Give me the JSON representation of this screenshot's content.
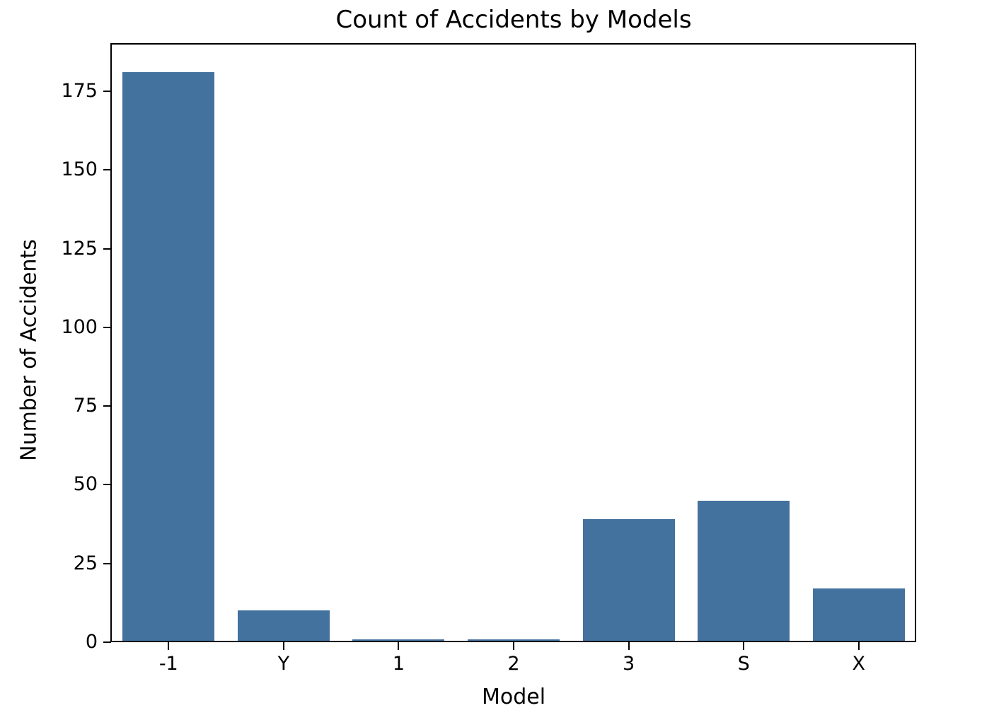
{
  "chart_data": {
    "type": "bar",
    "title": "Count of Accidents by Models",
    "xlabel": "Model",
    "ylabel": "Number of Accidents",
    "categories": [
      "-1",
      "Y",
      "1",
      "2",
      "3",
      "S",
      "X"
    ],
    "values": [
      181,
      10,
      1,
      1,
      39,
      45,
      17
    ],
    "yticks": [
      0,
      25,
      50,
      75,
      100,
      125,
      150,
      175
    ],
    "ylim": [
      0,
      190.05
    ],
    "bar_color": "#44729f",
    "bar_width_fraction": 0.8,
    "grid": false,
    "legend_position": "none"
  }
}
